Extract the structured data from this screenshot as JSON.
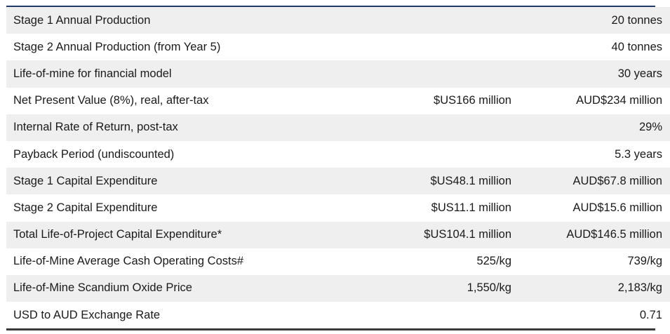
{
  "table": {
    "rows": [
      {
        "label": "Stage 1 Annual Production",
        "usd": "",
        "aud": "20 tonnes"
      },
      {
        "label": "Stage 2 Annual Production (from Year 5)",
        "usd": "",
        "aud": "40 tonnes"
      },
      {
        "label": "Life-of-mine for financial model",
        "usd": "",
        "aud": "30 years"
      },
      {
        "label": "Net Present Value (8%), real, after-tax",
        "usd": "$US166 million",
        "aud": "AUD$234 million"
      },
      {
        "label": "Internal Rate of Return, post-tax",
        "usd": "",
        "aud": "29%"
      },
      {
        "label": "Payback Period (undiscounted)",
        "usd": "",
        "aud": "5.3 years"
      },
      {
        "label": "Stage 1 Capital Expenditure",
        "usd": "$US48.1 million",
        "aud": "AUD$67.8 million"
      },
      {
        "label": "Stage 2 Capital Expenditure",
        "usd": "$US11.1 million",
        "aud": "AUD$15.6 million"
      },
      {
        "label": "Total Life-of-Project Capital Expenditure*",
        "usd": "$US104.1 million",
        "aud": "AUD$146.5 million"
      },
      {
        "label": "Life-of-Mine Average Cash Operating Costs#",
        "usd": "525/kg",
        "aud": "739/kg"
      },
      {
        "label": "Life-of-Mine Scandium Oxide Price",
        "usd": "1,550/kg",
        "aud": "2,183/kg"
      },
      {
        "label": "USD to AUD Exchange Rate",
        "usd": "",
        "aud": "0.71"
      }
    ]
  },
  "colors": {
    "top_rule": "#1f3a6b",
    "bottom_rule": "#3a3a3a",
    "stripe": "#efefef"
  }
}
